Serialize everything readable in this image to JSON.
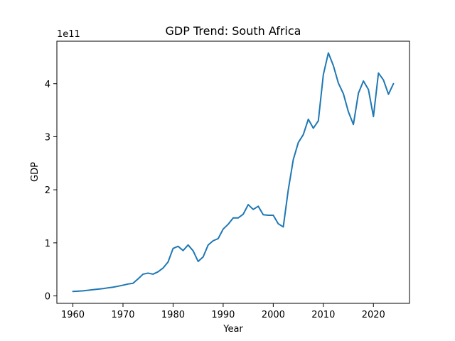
{
  "chart_data": {
    "type": "line",
    "title": "GDP Trend: South Africa",
    "xlabel": "Year",
    "ylabel": "GDP",
    "y_offset_text": "1e11",
    "xlim": [
      1956.8,
      2027.2
    ],
    "ylim": [
      -14000000000.0,
      480000000000.0
    ],
    "x_ticks": [
      1960,
      1970,
      1980,
      1990,
      2000,
      2010,
      2020
    ],
    "x_tick_labels": [
      "1960",
      "1970",
      "1980",
      "1990",
      "2000",
      "2010",
      "2020"
    ],
    "y_ticks": [
      0,
      100000000000.0,
      200000000000.0,
      300000000000.0,
      400000000000.0
    ],
    "y_tick_labels": [
      "0",
      "1",
      "2",
      "3",
      "4"
    ],
    "grid": false,
    "line_color": "#1f77b4",
    "series": [
      {
        "x": [
          1960,
          1961,
          1962,
          1963,
          1964,
          1965,
          1966,
          1967,
          1968,
          1969,
          1970,
          1971,
          1972,
          1973,
          1974,
          1975,
          1976,
          1977,
          1978,
          1979,
          1980,
          1981,
          1982,
          1983,
          1984,
          1985,
          1986,
          1987,
          1988,
          1989,
          1990,
          1991,
          1992,
          1993,
          1994,
          1995,
          1996,
          1997,
          1998,
          1999,
          2000,
          2001,
          2002,
          2003,
          2004,
          2005,
          2006,
          2007,
          2008,
          2009,
          2010,
          2011,
          2012,
          2013,
          2014,
          2015,
          2016,
          2017,
          2018,
          2019,
          2020,
          2021,
          2022,
          2023,
          2024
        ],
        "y": [
          8400000000.0,
          9000000000.0,
          9600000000.0,
          10600000000.0,
          11700000000.0,
          12800000000.0,
          13800000000.0,
          15200000000.0,
          16400000000.0,
          18200000000.0,
          20200000000.0,
          22400000000.0,
          23800000000.0,
          32000000000.0,
          41000000000.0,
          43000000000.0,
          41000000000.0,
          45500000000.0,
          52500000000.0,
          64000000000.0,
          89500000000.0,
          93500000000.0,
          85500000000.0,
          96000000000.0,
          85000000000.0,
          65000000000.0,
          73500000000.0,
          96000000000.0,
          104000000000.0,
          108000000000.0,
          126000000000.0,
          135000000000.0,
          147000000000.0,
          147000000000.0,
          154000000000.0,
          172000000000.0,
          163000000000.0,
          169000000000.0,
          153000000000.0,
          152000000000.0,
          152000000000.0,
          136000000000.0,
          130000000000.0,
          200000000000.0,
          257000000000.0,
          289000000000.0,
          304000000000.0,
          333000000000.0,
          316000000000.0,
          330000000000.0,
          417000000000.0,
          458000000000.0,
          434000000000.0,
          401000000000.0,
          381000000000.0,
          347000000000.0,
          323000000000.0,
          382000000000.0,
          405000000000.0,
          389000000000.0,
          338000000000.0,
          420000000000.0,
          407000000000.0,
          380000000000.0,
          400000000000.0
        ]
      }
    ]
  }
}
